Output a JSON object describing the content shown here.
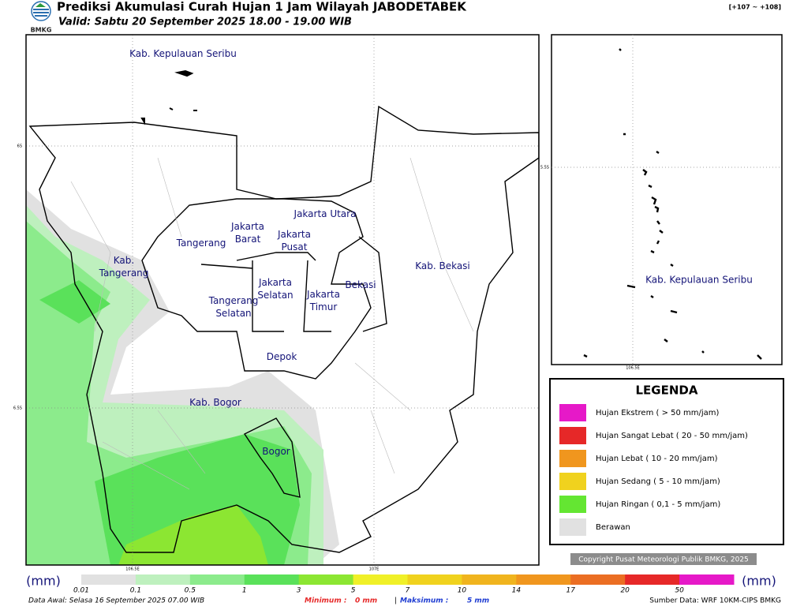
{
  "header": {
    "title": "Prediksi Akumulasi Curah Hujan 1 Jam Wilayah JABODETABEK",
    "subtitle": "Valid: Sabtu 20 September 2025 18.00 - 19.00 WIB",
    "logo": "BMKG",
    "range": "[+107 ~ +108]"
  },
  "map": {
    "labels": [
      {
        "lines": [
          "Kab. Kepulauan Seribu"
        ]
      },
      {
        "lines": [
          "Jakarta Utara"
        ]
      },
      {
        "lines": [
          "Jakarta",
          "Barat"
        ]
      },
      {
        "lines": [
          "Jakarta",
          "Pusat"
        ]
      },
      {
        "lines": [
          "Tangerang"
        ]
      },
      {
        "lines": [
          "Kab.",
          "Tangerang"
        ]
      },
      {
        "lines": [
          "Kab. Bekasi"
        ]
      },
      {
        "lines": [
          "Bekasi"
        ]
      },
      {
        "lines": [
          "Jakarta",
          "Selatan"
        ]
      },
      {
        "lines": [
          "Jakarta",
          "Timur"
        ]
      },
      {
        "lines": [
          "Tangerang",
          "Selatan"
        ]
      },
      {
        "lines": [
          "Depok"
        ]
      },
      {
        "lines": [
          "Kab. Bogor"
        ]
      },
      {
        "lines": [
          "Bogor"
        ]
      }
    ],
    "lat_labels": [
      "6S",
      "6.5S"
    ],
    "lon_labels": [
      "106.5E",
      "107E"
    ]
  },
  "inset": {
    "label": "Kab. Kepulauan Seribu",
    "lat_label": "5.5S",
    "lon_label": "106.5E"
  },
  "legend": {
    "title": "LEGENDA",
    "items": [
      {
        "label": "Hujan Ekstrem ( > 50 mm/jam)",
        "color": "#e619c8"
      },
      {
        "label": "Hujan Sangat Lebat ( 20 - 50 mm/jam)",
        "color": "#e62828"
      },
      {
        "label": "Hujan Lebat ( 10 - 20 mm/jam)",
        "color": "#f0961e"
      },
      {
        "label": "Hujan Sedang ( 5 - 10 mm/jam)",
        "color": "#f0d21e"
      },
      {
        "label": "Hujan Ringan ( 0,1 - 5 mm/jam)",
        "color": "#64e632"
      },
      {
        "label": "Berawan",
        "color": "#e1e1e1"
      }
    ]
  },
  "copyright": "Copyright Pusat Meteorologi Publik BMKG, 2025",
  "colorbar": {
    "unit": "(mm)",
    "ticks": [
      "0.01",
      "0.1",
      "0.5",
      "1",
      "3",
      "5",
      "7",
      "10",
      "14",
      "17",
      "20",
      "50"
    ],
    "colors": [
      "#e1e1e1",
      "#bef0be",
      "#8ceb8c",
      "#5ae15a",
      "#8ce632",
      "#f0f028",
      "#f0d21e",
      "#f0b41e",
      "#f0961e",
      "#eb6e23",
      "#e62828",
      "#e619c8"
    ]
  },
  "footer": {
    "data_awal": "Data Awal: Selasa 16 September 2025 07.00 WIB",
    "minimum_label": "Minimum :",
    "minimum_value": "0 mm",
    "separator": "|",
    "maximum_label": "Maksimum :",
    "maximum_value": "5 mm",
    "source": "Sumber Data: WRF 10KM-CIPS BMKG"
  }
}
